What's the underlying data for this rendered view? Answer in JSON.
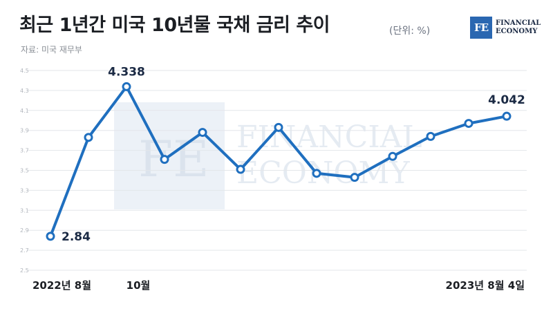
{
  "header": {
    "title": "최근 1년간 미국 10년물 국채 금리 추이",
    "unit": "(단위: %)",
    "source": "자료: 미국 재무부"
  },
  "logo": {
    "mark": "FE",
    "line1": "FINANCIAL",
    "line2": "ECONOMY",
    "color": "#2a67b1"
  },
  "watermark": {
    "mark": "FE",
    "line1": "FINANCIAL",
    "line2": "ECONOMY"
  },
  "chart_data": {
    "type": "line",
    "title": "최근 1년간 미국 10년물 국채 금리 추이",
    "ylabel": "",
    "xlabel": "",
    "ylim": [
      2.5,
      4.5
    ],
    "yticks": [
      "2.5",
      "2.7",
      "2.9",
      "3.1",
      "3.3",
      "3.5",
      "3.7",
      "3.9",
      "4.1",
      "4.3",
      "4.5"
    ],
    "x_tick_labels": [
      "2022년 8월",
      "10월",
      "2023년 8월 4일"
    ],
    "x_tick_index": [
      0,
      2,
      12
    ],
    "values": [
      2.84,
      3.83,
      4.338,
      3.61,
      3.88,
      3.51,
      3.93,
      3.47,
      3.43,
      3.64,
      3.84,
      3.97,
      4.042
    ],
    "data_labels": [
      {
        "index": 0,
        "text": "2.84"
      },
      {
        "index": 2,
        "text": "4.338"
      },
      {
        "index": 12,
        "text": "4.042"
      }
    ],
    "line_color": "#1f6fbf",
    "grid": true,
    "legend": "none"
  }
}
